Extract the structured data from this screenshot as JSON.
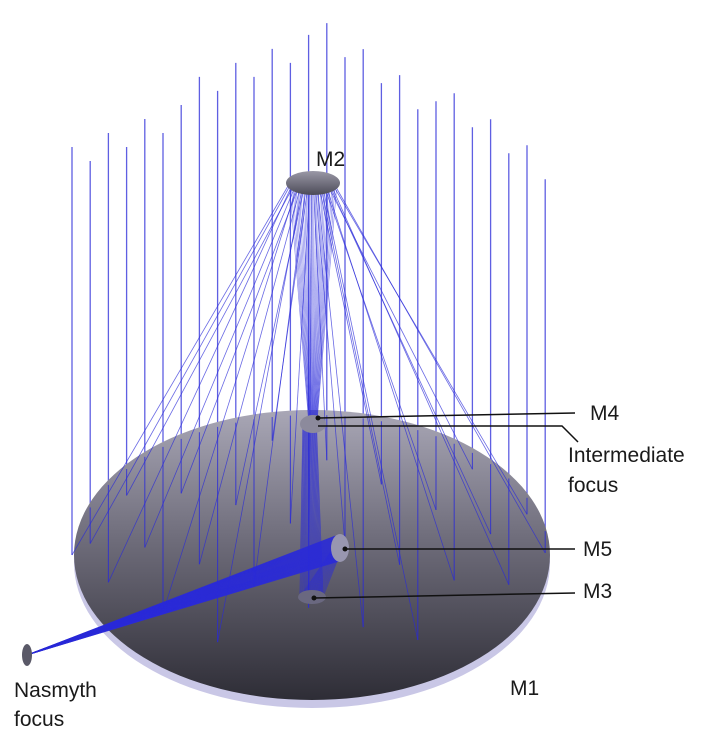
{
  "labels": {
    "m2": "M2",
    "m4": "M4",
    "intermediate_focus": [
      "Intermediate",
      "focus"
    ],
    "m5": "M5",
    "m3": "M3",
    "m1": "M1",
    "nasmyth_focus": [
      "Nasmyth",
      "focus"
    ]
  }
}
